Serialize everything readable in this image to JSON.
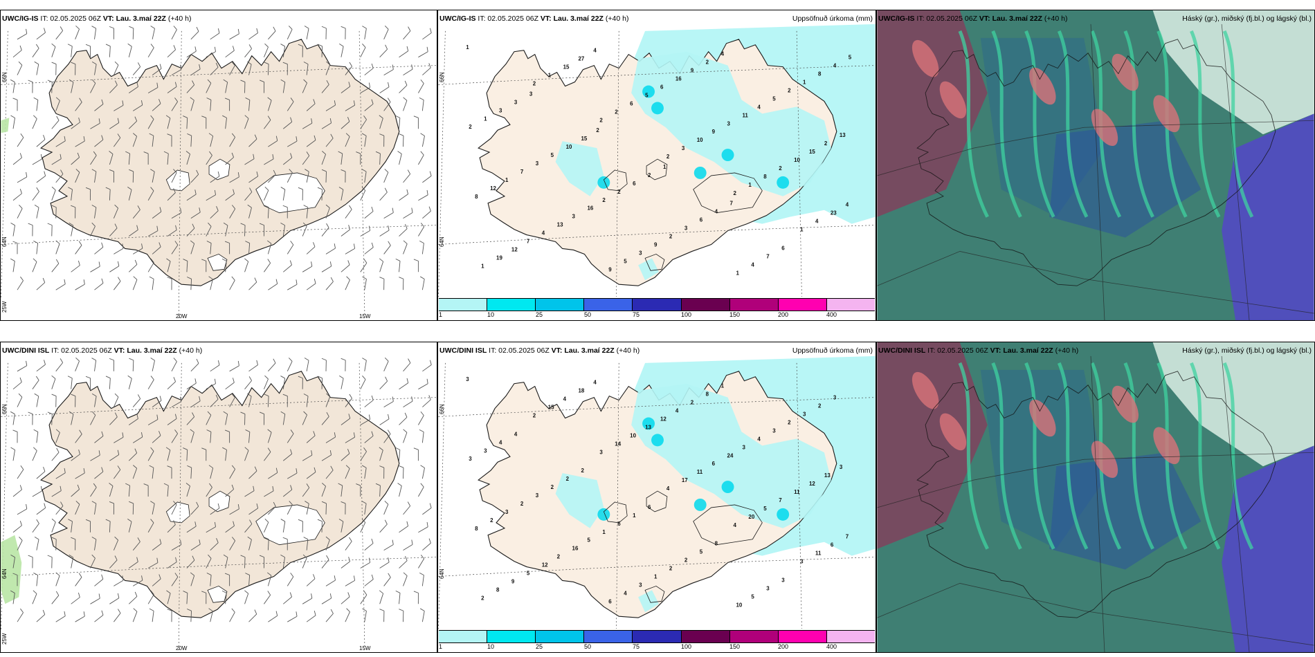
{
  "rows": [
    {
      "model": "UWC/IG-IS",
      "left": {
        "model": "UWC/IG-IS",
        "it": "IT: 02.05.2025 06Z",
        "vt_label": "VT:",
        "vt": "Lau. 3.maí 22Z",
        "lead": "(+40 h)"
      },
      "mid": {
        "model": "UWC/IG-IS",
        "it": "IT: 02.05.2025 06Z",
        "vt_label": "VT:",
        "vt": "Lau. 3.maí 22Z",
        "lead": "(+40 h)",
        "title": "Uppsöfnuð úrkoma (mm)"
      },
      "right": {
        "model": "UWC/IG-IS",
        "it": "IT: 02.05.2025 06Z",
        "vt_label": "VT:",
        "vt": "Lau. 3.maí 22Z",
        "lead": "(+40 h)",
        "title": "Háský (gr.), miðský (fj.bl.) og lágský (bl.)"
      },
      "precip_labels": [
        "1",
        "2",
        "2",
        "2",
        "2",
        "1",
        "1",
        "1",
        "2",
        "3",
        "1",
        "4",
        "19",
        "15",
        "6",
        "10",
        "8",
        "23",
        "12",
        "27",
        "5",
        "9",
        "2",
        "4",
        "7",
        "4",
        "6",
        "3",
        "10",
        "8",
        "4",
        "9",
        "16",
        "11",
        "15",
        "12",
        "13",
        "5",
        "9",
        "4",
        "2",
        "1",
        "3",
        "3",
        "2",
        "5",
        "13",
        "7",
        "16",
        "9",
        "4",
        "2",
        "2",
        "3",
        "2",
        "2",
        "1",
        "1",
        "1",
        "5",
        "2",
        "3",
        "4",
        "8",
        "3",
        "10",
        "6",
        "6",
        "7",
        "4",
        "3",
        "15",
        "2",
        "4",
        "6",
        "5",
        "3",
        "2",
        "1",
        "7"
      ]
    },
    {
      "model": "UWC/DINI ISL",
      "left": {
        "model": "UWC/DINI ISL",
        "it": "IT: 02.05.2025 06Z",
        "vt_label": "VT:",
        "vt": "Lau. 3.maí 22Z",
        "lead": "(+40 h)"
      },
      "mid": {
        "model": "UWC/DINI ISL",
        "it": "IT: 02.05.2025 06Z",
        "vt_label": "VT:",
        "vt": "Lau. 3.maí 22Z",
        "lead": "(+40 h)",
        "title": "Uppsöfnuð úrkoma (mm)"
      },
      "right": {
        "model": "UWC/DINI ISL",
        "it": "IT: 02.05.2025 06Z",
        "vt_label": "VT:",
        "vt": "Lau. 3.maí 22Z",
        "lead": "(+40 h)",
        "title": "Háský (gr.), miðský (fj.bl.) og lágský (bl.)"
      },
      "precip_labels": [
        "3",
        "2",
        "3",
        "4",
        "4",
        "3",
        "2",
        "15",
        "14",
        "17",
        "20",
        "11",
        "8",
        "4",
        "10",
        "11",
        "5",
        "6",
        "9",
        "18",
        "13",
        "6",
        "7",
        "7",
        "5",
        "4",
        "12",
        "24",
        "11",
        "8",
        "12",
        "6",
        "4",
        "3",
        "12",
        "2",
        "2",
        "4",
        "2",
        "4",
        "13",
        "3",
        "16",
        "3",
        "8",
        "3",
        "3",
        "2",
        "5",
        "1",
        "1",
        "2",
        "3",
        "3",
        "1",
        "2",
        "10",
        "3",
        "3",
        "2",
        "6",
        "2",
        "5",
        "2",
        "4",
        "2",
        "1",
        "5",
        "3",
        "3",
        "4",
        "2",
        "6",
        "8",
        "3"
      ]
    }
  ],
  "axis_labels": {
    "lat_n": "66N",
    "lat_s": "64N",
    "lon_w20": "20W",
    "lon_w15": "15W",
    "lon_w25": "25W"
  },
  "legend": {
    "ticks": [
      "1",
      "10",
      "25",
      "50",
      "75",
      "100",
      "150",
      "200",
      "400"
    ],
    "colors": [
      "#b4f5f5",
      "#00e8f0",
      "#00c4ea",
      "#3a63e8",
      "#2b2ab3",
      "#6a0050",
      "#b0007a",
      "#ff00b0",
      "#f4b4f0"
    ]
  },
  "colors": {
    "land": "#f2e6d8",
    "land_mid": "#faefe3",
    "coast": "#1a1a1a",
    "precip_light": "#b4f5f5",
    "cloud_high": "#7a8a88",
    "cloud_mid": "#2e8a78",
    "cloud_low": "#2a4fa0"
  }
}
